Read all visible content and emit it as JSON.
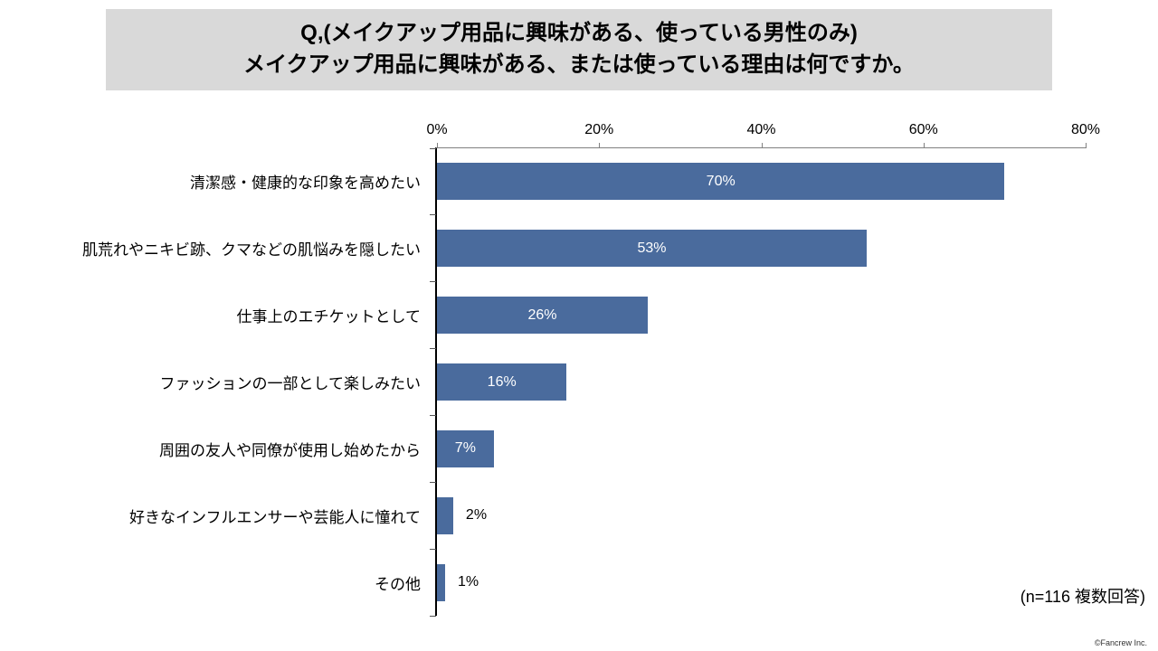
{
  "title": {
    "line1": "Q,(メイクアップ用品に興味がある、使っている男性のみ)",
    "line2": "メイクアップ用品に興味がある、または使っている理由は何ですか。"
  },
  "chart_data": {
    "type": "bar",
    "orientation": "horizontal",
    "title": "メイクアップ用品に興味がある、または使っている理由",
    "categories": [
      "清潔感・健康的な印象を高めたい",
      "肌荒れやニキビ跡、クマなどの肌悩みを隠したい",
      "仕事上のエチケットとして",
      "ファッションの一部として楽しみたい",
      "周囲の友人や同僚が使用し始めたから",
      "好きなインフルエンサーや芸能人に憧れて",
      "その他"
    ],
    "values": [
      70,
      53,
      26,
      16,
      7,
      2,
      1
    ],
    "value_labels": [
      "70%",
      "53%",
      "26%",
      "16%",
      "7%",
      "2%",
      "1%"
    ],
    "xlim": [
      0,
      80
    ],
    "x_ticks": [
      "0%",
      "20%",
      "40%",
      "60%",
      "80%"
    ],
    "bar_color": "#4a6b9d",
    "label_inside_min": 7,
    "grid": false,
    "legend": "none",
    "axis_position": "top"
  },
  "footer": {
    "note": "(n=116 複数回答)",
    "copyright": "©Fancrew Inc."
  }
}
